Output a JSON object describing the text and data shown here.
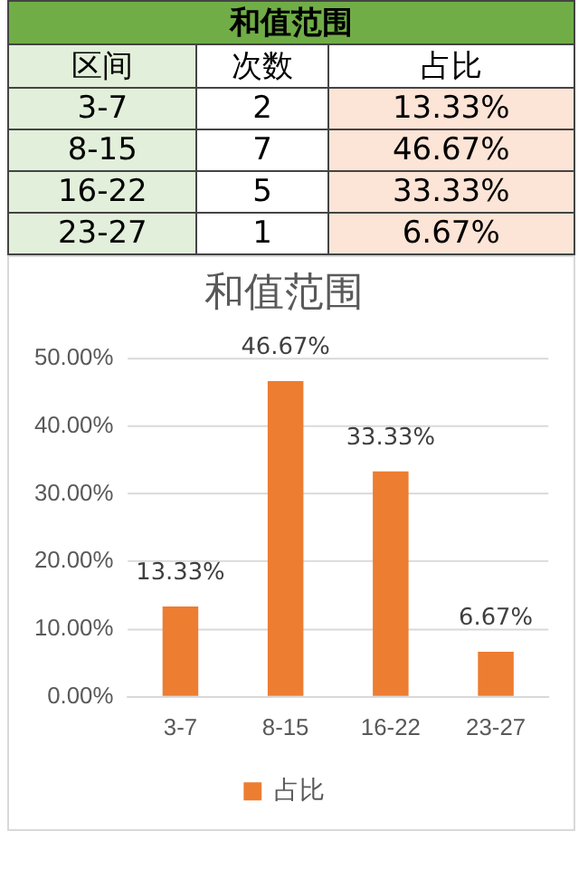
{
  "chart_data": [
    {
      "type": "other",
      "title": "和值范围",
      "xlabel": "区间",
      "categories": [
        "3-7",
        "8-15",
        "16-22",
        "23-27"
      ],
      "series": [
        {
          "name": "次数",
          "values": [
            2,
            7,
            5,
            1
          ]
        },
        {
          "name": "占比",
          "color": "#fce4d6",
          "values": [
            13.33,
            46.67,
            33.33,
            6.67
          ],
          "value_labels": [
            "13.33%",
            "46.67%",
            "33.33%",
            "6.67%"
          ]
        }
      ],
      "data_labels": true
    },
    {
      "type": "bar",
      "title": "和值范围",
      "categories": [
        "3-7",
        "8-15",
        "16-22",
        "23-27"
      ],
      "series": [
        {
          "name": "占比",
          "color": "#ed7d31",
          "values": [
            13.33,
            46.67,
            33.33,
            6.67
          ],
          "value_labels": [
            "13.33%",
            "46.67%",
            "33.33%",
            "6.67%"
          ]
        }
      ],
      "ylim": [
        0,
        50
      ],
      "yticks": [
        {
          "value": 0,
          "label": "0.00%"
        },
        {
          "value": 10,
          "label": "10.00%"
        },
        {
          "value": 20,
          "label": "20.00%"
        },
        {
          "value": 30,
          "label": "30.00%"
        },
        {
          "value": 40,
          "label": "40.00%"
        },
        {
          "value": 50,
          "label": "50.00%"
        }
      ],
      "grid": "y",
      "legend": "bottom"
    }
  ]
}
